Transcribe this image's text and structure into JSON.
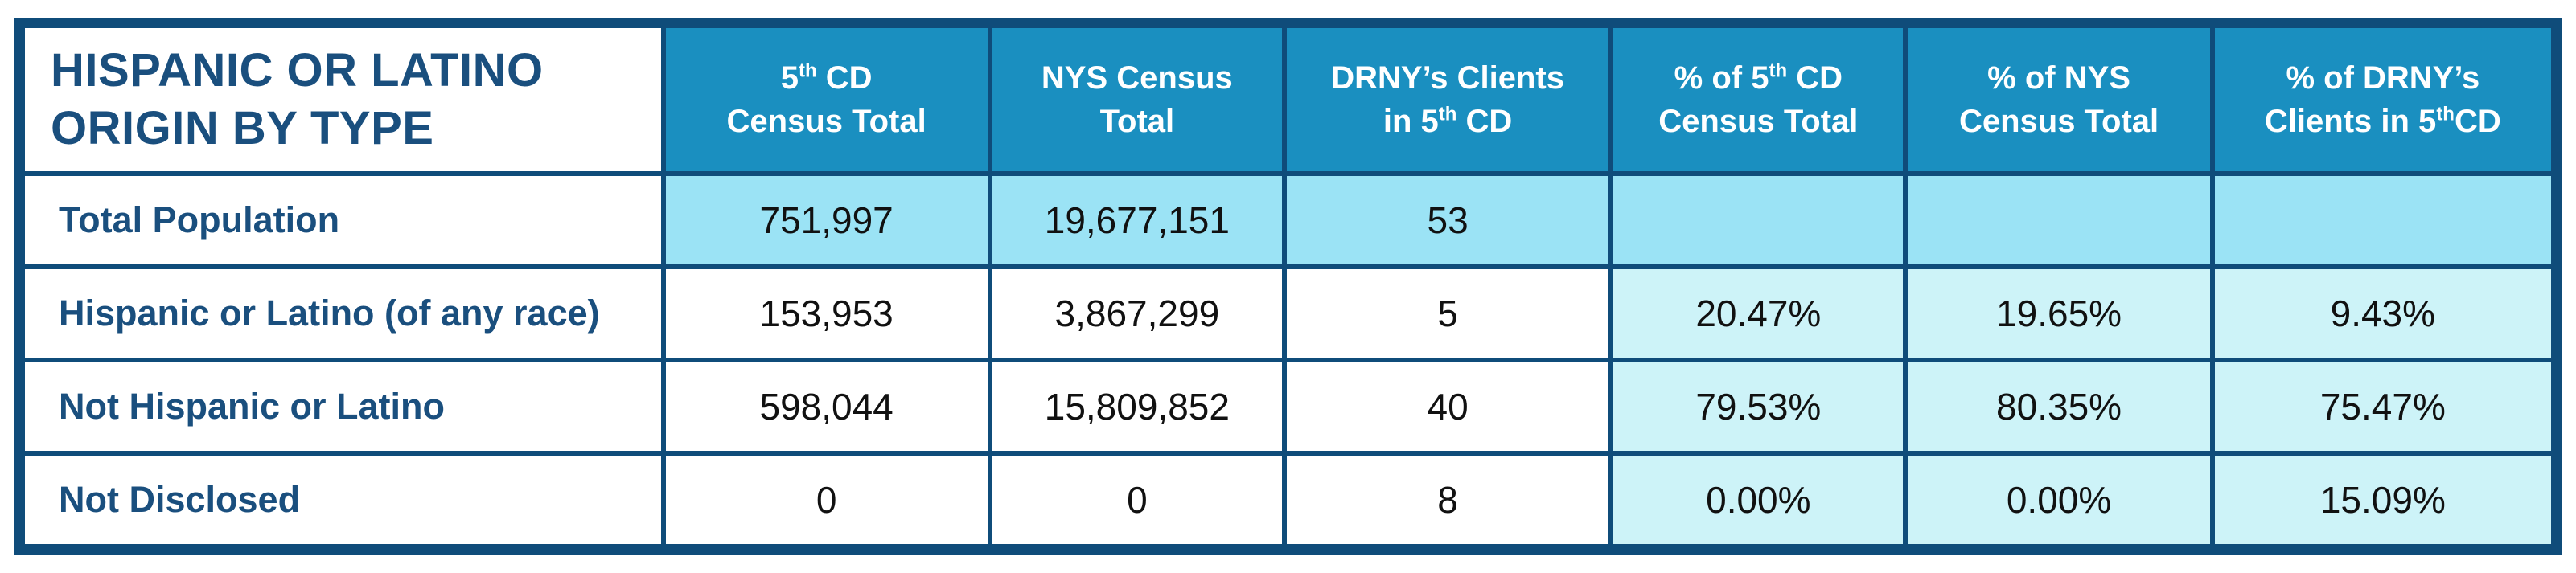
{
  "table": {
    "title_line1": "HISPANIC OR LATINO",
    "title_line2": "ORIGIN BY TYPE",
    "headers": {
      "cd_total": {
        "pre": "5",
        "sup": "th",
        "post": " CD",
        "line2": "Census Total"
      },
      "nys_total": {
        "line1": "NYS Census",
        "line2": "Total"
      },
      "drny_clients": {
        "line1": "DRNY’s Clients",
        "line2_pre": "in 5",
        "sup": "th",
        "line2_post": " CD"
      },
      "pct_cd": {
        "line1_pre": "% of 5",
        "sup": "th",
        "line1_post": " CD",
        "line2": "Census Total"
      },
      "pct_nys": {
        "line1": "% of NYS",
        "line2": "Census Total"
      },
      "pct_drny": {
        "line1": "% of DRNY’s",
        "line2_pre": "Clients in 5",
        "sup": "th",
        "line2_post": "CD"
      }
    },
    "rows": [
      {
        "label": "Total Population",
        "cd": "751,997",
        "nys": "19,677,151",
        "drny": "53",
        "pct_cd": "",
        "pct_nys": "",
        "pct_drny": ""
      },
      {
        "label": "Hispanic or Latino (of any race)",
        "cd": "153,953",
        "nys": "3,867,299",
        "drny": "5",
        "pct_cd": "20.47%",
        "pct_nys": "19.65%",
        "pct_drny": "9.43%"
      },
      {
        "label": "Not Hispanic or Latino",
        "cd": "598,044",
        "nys": "15,809,852",
        "drny": "40",
        "pct_cd": "79.53%",
        "pct_nys": "80.35%",
        "pct_drny": "75.47%"
      },
      {
        "label": "Not Disclosed",
        "cd": "0",
        "nys": "0",
        "drny": "8",
        "pct_cd": "0.00%",
        "pct_nys": "0.00%",
        "pct_drny": "15.09%"
      }
    ]
  },
  "colors": {
    "border": "#0f4c7a",
    "header_bg": "#1a8fc0",
    "title_text": "#1a4f7e",
    "total_row_bg": "#9be3f5",
    "pct_bg": "#cdf3f8"
  }
}
